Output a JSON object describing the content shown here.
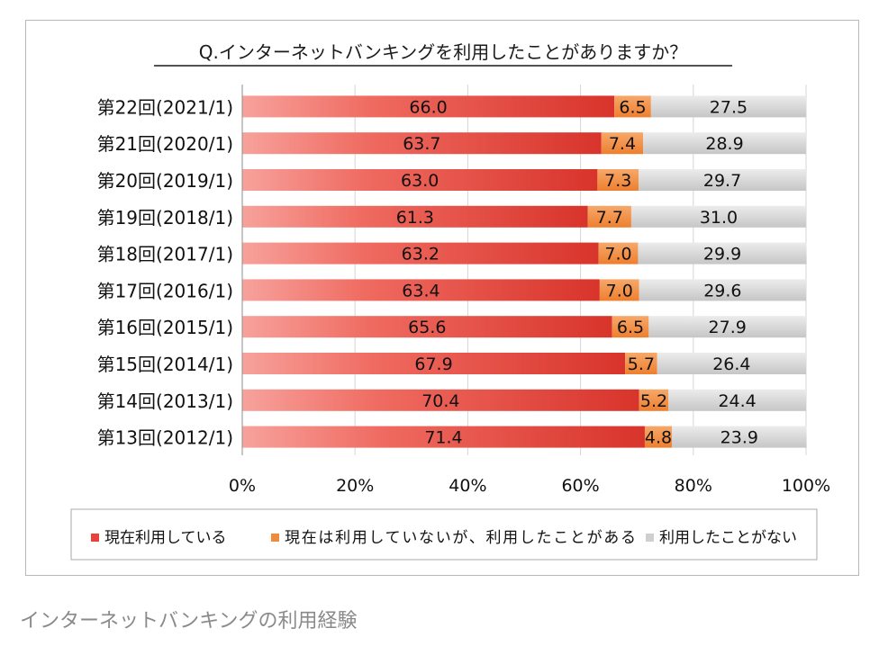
{
  "caption": "インターネットバンキングの利用経験",
  "chart_data": {
    "type": "bar",
    "orientation": "horizontal",
    "stacked": true,
    "title": "Q.インターネットバンキングを利用したことがありますか？",
    "categories": [
      "第22回(2021/1)",
      "第21回(2020/1)",
      "第20回(2019/1)",
      "第19回(2018/1)",
      "第18回(2017/1)",
      "第17回(2016/1)",
      "第16回(2015/1)",
      "第15回(2014/1)",
      "第14回(2013/1)",
      "第13回(2012/1)"
    ],
    "series": [
      {
        "name": "現在利用している",
        "color": "#e8423a",
        "values": [
          66.0,
          63.7,
          63.0,
          61.3,
          63.2,
          63.4,
          65.6,
          67.9,
          70.4,
          71.4
        ],
        "labels": [
          "66.0",
          "63.7",
          "63.0",
          "61.3",
          "63.2",
          "63.4",
          "65.6",
          "67.9",
          "70.4",
          "71.4"
        ]
      },
      {
        "name": "現在は利用していないが、利用したことがある",
        "color": "#f28a3c",
        "values": [
          6.5,
          7.4,
          7.3,
          7.7,
          7.0,
          7.0,
          6.5,
          5.7,
          5.2,
          4.8
        ],
        "labels": [
          "6.5",
          "7.4",
          "7.3",
          "7.7",
          "7.0",
          "7.0",
          "6.5",
          "5.7",
          "5.2",
          "4.8"
        ]
      },
      {
        "name": "利用したことがない",
        "color": "#cfcfcf",
        "values": [
          27.5,
          28.9,
          29.7,
          31.0,
          29.9,
          29.6,
          27.9,
          26.4,
          24.4,
          23.9
        ],
        "labels": [
          "27.5",
          "28.9",
          "29.7",
          "31.0",
          "29.9",
          "29.6",
          "27.9",
          "26.4",
          "24.4",
          "23.9"
        ]
      }
    ],
    "xlim": [
      0,
      100
    ],
    "xticks": [
      "0%",
      "20%",
      "40%",
      "60%",
      "80%",
      "100%"
    ],
    "grid": true,
    "legend_position": "bottom"
  }
}
